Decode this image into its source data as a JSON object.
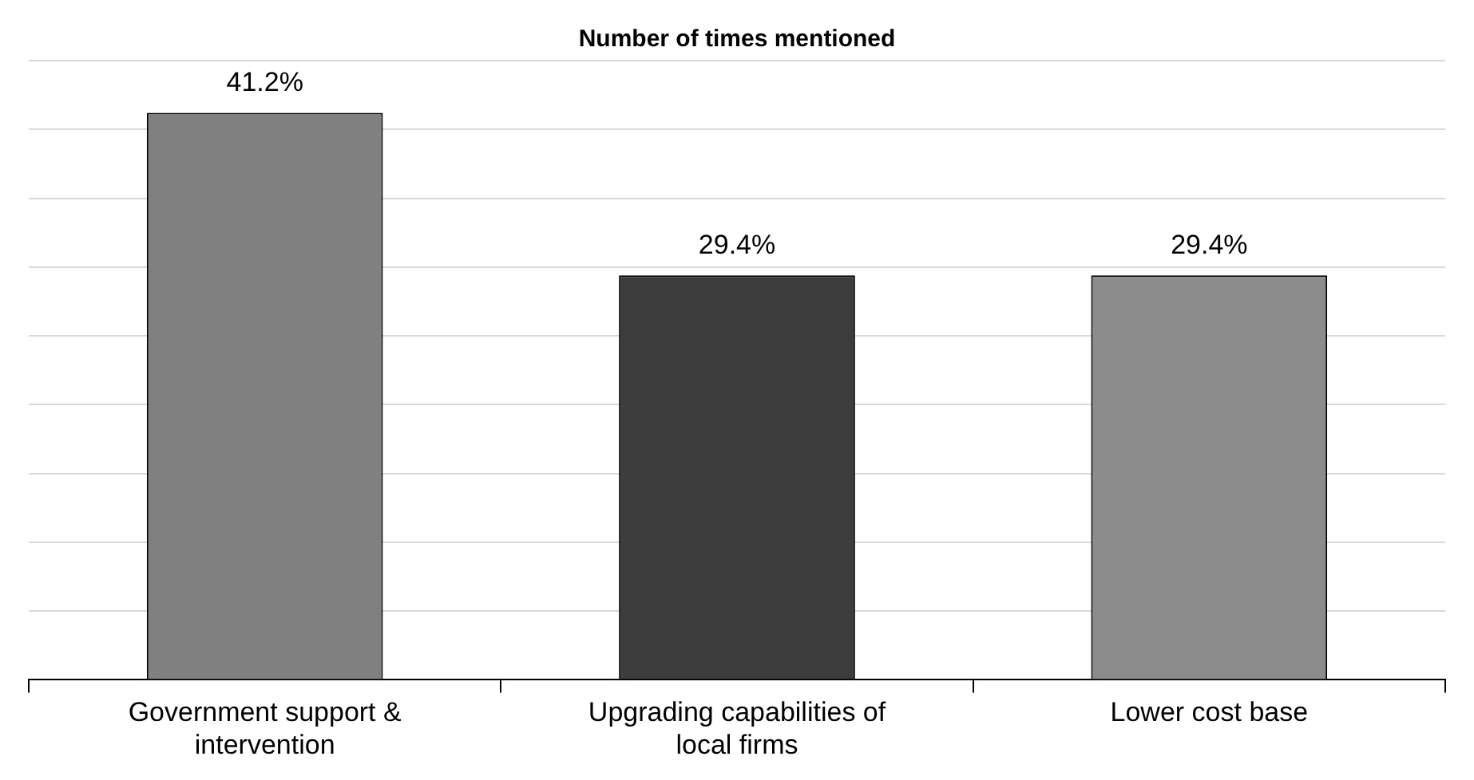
{
  "chart_data": {
    "type": "bar",
    "title": "Number of times mentioned",
    "categories": [
      "Government support & intervention",
      "Upgrading capabilities of local firms",
      "Lower cost base"
    ],
    "values": [
      41.2,
      29.4,
      29.4
    ],
    "colors": [
      "#808080",
      "#3c3c3c",
      "#8c8c8c"
    ],
    "value_labels": [
      "41.2%",
      "29.4%",
      "29.4%"
    ],
    "ylim": [
      0,
      45
    ],
    "yticks": [
      {
        "value": 0,
        "label": null
      },
      {
        "value": 5,
        "label": null
      },
      {
        "value": 10,
        "label": null
      },
      {
        "value": 15,
        "label": null
      },
      {
        "value": 20,
        "label": null
      },
      {
        "value": 25,
        "label": null
      },
      {
        "value": 30,
        "label": null
      },
      {
        "value": 35,
        "label": null
      },
      {
        "value": 40,
        "label": null
      },
      {
        "value": 45,
        "label": null
      }
    ],
    "grid": "y",
    "legend": false,
    "tick_labels": "x"
  }
}
